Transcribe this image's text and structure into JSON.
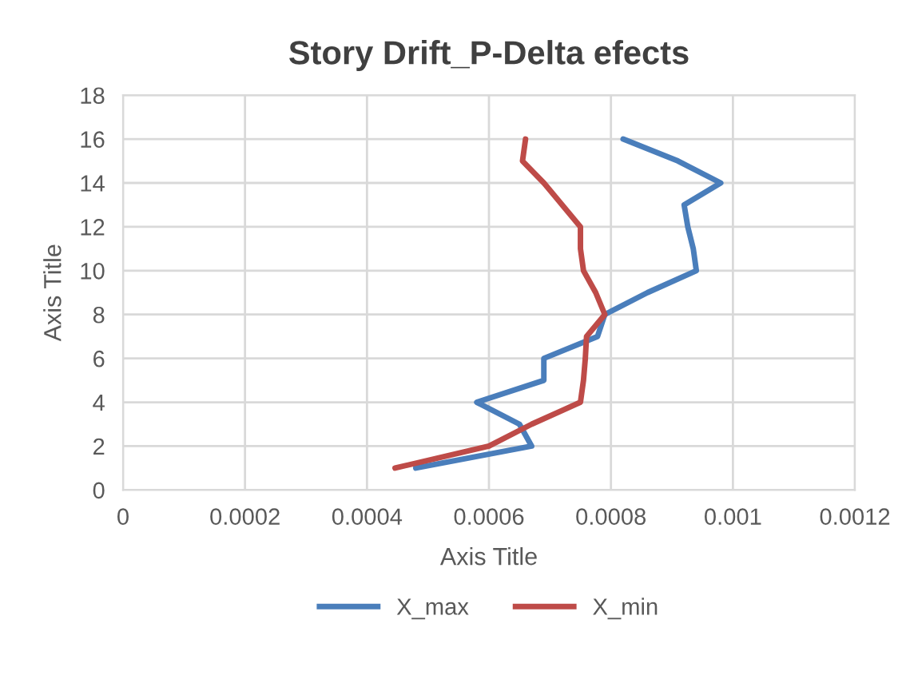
{
  "chart_data": {
    "type": "line",
    "title": "Story Drift_P-Delta efects",
    "xlabel": "Axis Title",
    "ylabel": "Axis Title",
    "xlim": [
      0,
      0.0012
    ],
    "xticks": [
      {
        "value": 0,
        "label": "0"
      },
      {
        "value": 0.0002,
        "label": "0.0002"
      },
      {
        "value": 0.0004,
        "label": "0.0004"
      },
      {
        "value": 0.0006,
        "label": "0.0006"
      },
      {
        "value": 0.0008,
        "label": "0.0008"
      },
      {
        "value": 0.001,
        "label": "0.001"
      },
      {
        "value": 0.0012,
        "label": "0.0012"
      }
    ],
    "ylim": [
      0,
      18
    ],
    "yticks": [
      0,
      2,
      4,
      6,
      8,
      10,
      12,
      14,
      16,
      18
    ],
    "grid": true,
    "legend": "bottom",
    "marker": "none",
    "line_style": "solid",
    "series": [
      {
        "name": "X_max",
        "color": "#4a7ebb",
        "x": [
          0.00048,
          0.00067,
          0.00065,
          0.00058,
          0.00069,
          0.00069,
          0.000778,
          0.00079,
          0.00086,
          0.00094,
          0.000935,
          0.000926,
          0.00092,
          0.00098,
          0.00091,
          0.00082
        ],
        "values": [
          1,
          2,
          3,
          4,
          5,
          6,
          7,
          8,
          9,
          10,
          11,
          12,
          13,
          14,
          15,
          16
        ]
      },
      {
        "name": "X_min",
        "color": "#be4b48",
        "x": [
          0.000446,
          0.0006,
          0.00067,
          0.00075,
          0.000755,
          0.000758,
          0.00076,
          0.00079,
          0.000775,
          0.000755,
          0.00075,
          0.00075,
          0.00072,
          0.00069,
          0.000655,
          0.00066
        ],
        "values": [
          1,
          2,
          3,
          4,
          5,
          6,
          7,
          8,
          9,
          10,
          11,
          12,
          13,
          14,
          15,
          16
        ]
      }
    ]
  }
}
